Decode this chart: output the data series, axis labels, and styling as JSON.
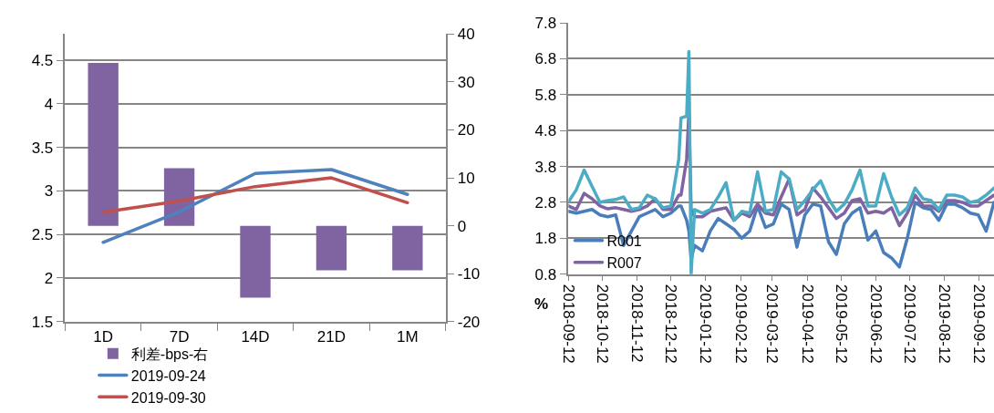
{
  "chart_data": [
    {
      "type": "bar",
      "categories": [
        "1D",
        "7D",
        "14D",
        "21D",
        "1M"
      ],
      "series": [
        {
          "name": "利差-bps-右",
          "type": "bar",
          "axis": "y2",
          "color": "#8064a2",
          "values": [
            34,
            12,
            -15,
            -9.3,
            -9.3
          ]
        },
        {
          "name": "2019-09-24",
          "type": "line",
          "color": "#4f81bd",
          "values": [
            2.41,
            2.76,
            3.2,
            3.245,
            2.96
          ]
        },
        {
          "name": "2019-09-30",
          "type": "line",
          "color": "#c0504d",
          "values": [
            2.755,
            2.885,
            3.05,
            3.15,
            2.865
          ]
        }
      ],
      "ylim": [
        1.5,
        4.8
      ],
      "yticks": [
        1.5,
        2,
        2.5,
        3,
        3.5,
        4,
        4.5
      ],
      "y2lim": [
        -20,
        40
      ],
      "y2ticks": [
        -20,
        -10,
        0,
        10,
        20,
        30,
        40
      ],
      "grid": "y",
      "legend": "bottom"
    },
    {
      "type": "line",
      "ylabel": "%",
      "x": [
        "2018-09-12",
        "2018-09-19",
        "2018-09-26",
        "2018-10-03",
        "2018-10-10",
        "2018-10-17",
        "2018-10-24",
        "2018-10-31",
        "2018-11-07",
        "2018-11-14",
        "2018-11-21",
        "2018-11-28",
        "2018-12-05",
        "2018-12-12",
        "2018-12-19",
        "2018-12-21",
        "2018-12-26",
        "2018-12-28",
        "2018-12-30",
        "2019-01-02",
        "2019-01-09",
        "2019-01-16",
        "2019-01-23",
        "2019-01-30",
        "2019-02-06",
        "2019-02-13",
        "2019-02-20",
        "2019-02-27",
        "2019-03-06",
        "2019-03-13",
        "2019-03-20",
        "2019-03-27",
        "2019-04-03",
        "2019-04-10",
        "2019-04-17",
        "2019-04-24",
        "2019-05-01",
        "2019-05-08",
        "2019-05-15",
        "2019-05-22",
        "2019-05-29",
        "2019-06-05",
        "2019-06-12",
        "2019-06-19",
        "2019-06-26",
        "2019-07-03",
        "2019-07-10",
        "2019-07-17",
        "2019-07-24",
        "2019-07-31",
        "2019-08-07",
        "2019-08-14",
        "2019-08-21",
        "2019-08-28",
        "2019-09-04",
        "2019-09-11",
        "2019-09-18",
        "2019-09-25"
      ],
      "series": [
        {
          "name": "R001",
          "color": "#4a7ebb",
          "values": [
            2.55,
            2.5,
            2.55,
            2.6,
            2.45,
            2.4,
            2.45,
            1.6,
            2.0,
            2.4,
            2.5,
            2.6,
            2.4,
            2.5,
            2.7,
            2.7,
            2.3,
            2.0,
            1.2,
            1.6,
            1.45,
            2.0,
            2.35,
            2.2,
            2.05,
            1.8,
            2.0,
            2.7,
            2.1,
            2.2,
            2.75,
            2.6,
            1.55,
            2.45,
            2.75,
            2.7,
            1.7,
            1.35,
            2.2,
            2.5,
            2.65,
            1.75,
            2.0,
            1.4,
            1.25,
            1.0,
            1.8,
            2.8,
            2.65,
            2.6,
            2.3,
            2.75,
            2.75,
            2.65,
            2.5,
            2.45,
            2.0,
            2.8
          ]
        },
        {
          "name": "R007",
          "color": "#8064a2",
          "values": [
            2.7,
            2.6,
            3.05,
            2.9,
            2.7,
            2.62,
            2.65,
            2.6,
            2.55,
            2.6,
            2.7,
            2.9,
            2.6,
            2.6,
            3.0,
            3.0,
            4.0,
            5.3,
            2.6,
            2.4,
            2.4,
            2.55,
            2.6,
            2.65,
            2.3,
            2.5,
            2.4,
            2.75,
            2.5,
            2.45,
            2.95,
            3.45,
            2.45,
            2.6,
            3.2,
            2.95,
            2.65,
            2.35,
            2.5,
            2.85,
            2.9,
            2.5,
            2.55,
            2.5,
            2.65,
            2.15,
            2.5,
            3.0,
            2.7,
            2.7,
            2.55,
            2.85,
            2.85,
            2.8,
            2.7,
            2.7,
            2.85,
            3.0
          ]
        },
        {
          "color": "#4bacc6",
          "values": [
            2.81,
            3.15,
            3.7,
            3.24,
            2.8,
            2.85,
            2.88,
            2.95,
            2.6,
            2.65,
            3.0,
            2.9,
            2.65,
            2.7,
            4.0,
            5.15,
            5.2,
            7.0,
            0.8,
            2.6,
            2.5,
            2.6,
            2.95,
            3.35,
            2.3,
            2.55,
            2.5,
            3.65,
            2.55,
            2.6,
            3.65,
            3.45,
            2.6,
            2.85,
            3.15,
            3.4,
            2.9,
            2.55,
            2.75,
            3.15,
            3.7,
            2.7,
            2.7,
            3.6,
            2.95,
            2.45,
            2.65,
            3.2,
            2.9,
            2.85,
            2.6,
            3.0,
            3.0,
            2.95,
            2.8,
            2.85,
            3.0,
            3.2
          ]
        }
      ],
      "xlim": [
        "2018-09-12",
        "2019-09-25"
      ],
      "xticks": [
        "2018-09-12",
        "2018-10-12",
        "2018-11-12",
        "2018-12-12",
        "2019-01-12",
        "2019-02-12",
        "2019-03-12",
        "2019-04-12",
        "2019-05-12",
        "2019-06-12",
        "2019-07-12",
        "2019-08-12",
        "2019-09-12"
      ],
      "ylim": [
        0.8,
        7.8
      ],
      "yticks": [
        0.8,
        1.8,
        2.8,
        3.8,
        4.8,
        5.8,
        6.8,
        7.8
      ],
      "grid": "y",
      "legend": "bottom left"
    }
  ]
}
